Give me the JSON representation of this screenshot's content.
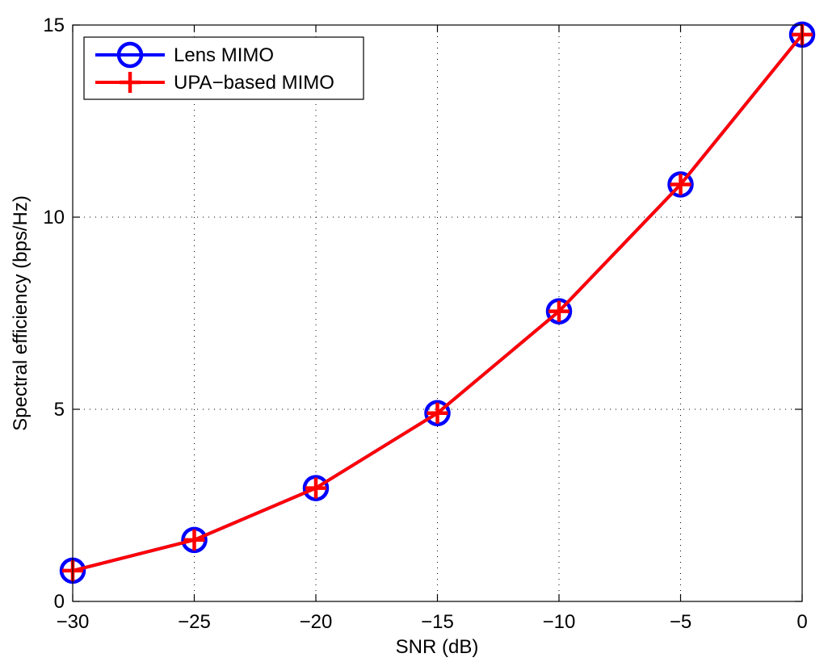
{
  "chart_data": {
    "type": "line",
    "xlabel": "SNR (dB)",
    "ylabel": "Spectral efficiency (bps/Hz)",
    "xlim": [
      -30,
      0
    ],
    "ylim": [
      0,
      15
    ],
    "xticks": [
      -30,
      -25,
      -20,
      -15,
      -10,
      -5,
      0
    ],
    "yticks": [
      0,
      5,
      10,
      15
    ],
    "xtick_labels": [
      "−30",
      "−25",
      "−20",
      "−15",
      "−10",
      "−5",
      "0"
    ],
    "ytick_labels": [
      "0",
      "5",
      "10",
      "15"
    ],
    "grid": true,
    "legend_position": "top-left",
    "x": [
      -30,
      -25,
      -20,
      -15,
      -10,
      -5,
      0
    ],
    "series": [
      {
        "name": "Lens MIMO",
        "color": "#0000ff",
        "marker": "circle",
        "values": [
          0.8,
          1.6,
          2.95,
          4.9,
          7.55,
          10.85,
          14.75
        ]
      },
      {
        "name": "UPA−based MIMO",
        "color": "#ff0000",
        "marker": "plus",
        "values": [
          0.8,
          1.6,
          2.95,
          4.9,
          7.55,
          10.85,
          14.75
        ]
      }
    ]
  }
}
